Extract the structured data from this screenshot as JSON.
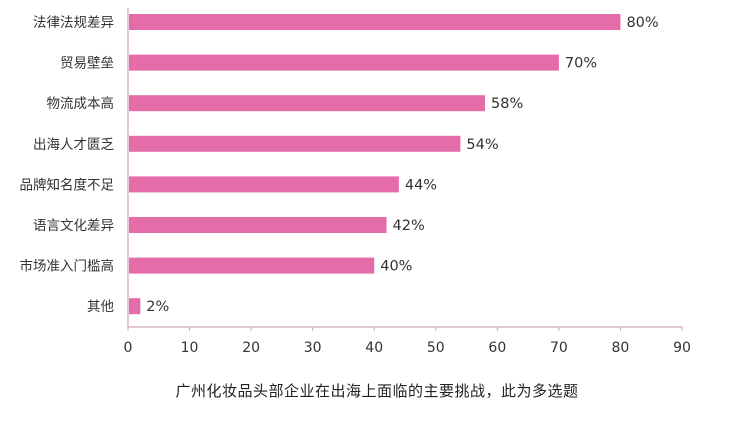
{
  "colors": {
    "bar": "#e46ca8",
    "axis": "#cfa6bb",
    "text": "#333333",
    "caption": "#222222"
  },
  "chart_data": {
    "type": "bar",
    "orientation": "horizontal",
    "categories": [
      "法律法规差异",
      "贸易壁垒",
      "物流成本高",
      "出海人才匮乏",
      "品牌知名度不足",
      "语言文化差异",
      "市场准入门槛高",
      "其他"
    ],
    "values": [
      80,
      70,
      58,
      54,
      44,
      42,
      40,
      2
    ],
    "data_labels": [
      "80%",
      "70%",
      "58%",
      "54%",
      "44%",
      "42%",
      "40%",
      "2%"
    ],
    "xlim": [
      0,
      90
    ],
    "xticks": [
      0,
      10,
      20,
      30,
      40,
      50,
      60,
      70,
      80,
      90
    ],
    "xtick_labels": [
      "0",
      "10",
      "20",
      "30",
      "40",
      "50",
      "60",
      "70",
      "80",
      "90"
    ],
    "grid": false,
    "legend": "none",
    "title": "",
    "xlabel": "",
    "ylabel": ""
  },
  "caption": "广州化妆品头部企业在出海上面临的主要挑战，此为多选题"
}
